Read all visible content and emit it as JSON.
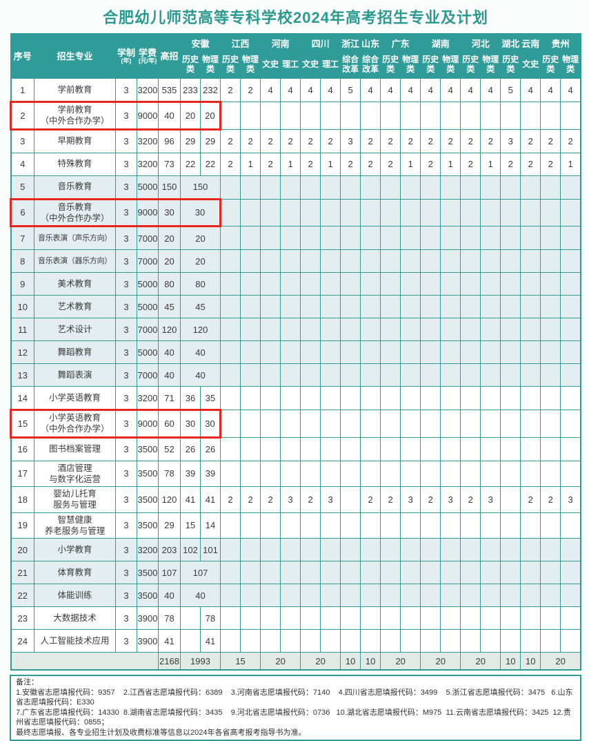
{
  "title": "合肥幼儿师范高等专科学校2024年高考招生专业及计划",
  "colors": {
    "accent_teal": "#2f9c99",
    "grid_teal": "#35a09c",
    "highlight_red": "#e6251c",
    "shaded_row": "#e4edef",
    "totals_row": "#e3e9e5",
    "title_text": "#2a9a90"
  },
  "table": {
    "header": {
      "seq": "序号",
      "major": "招生专业",
      "duration": "学制",
      "duration_unit": "(年)",
      "tuition": "学费",
      "tuition_unit": "(元/年)",
      "total": "高招",
      "provinces": [
        {
          "name": "安徽",
          "cols": [
            "历史类",
            "物理类"
          ]
        },
        {
          "name": "江西",
          "cols": [
            "历史类",
            "物理类"
          ]
        },
        {
          "name": "河南",
          "cols": [
            "文史",
            "理工"
          ]
        },
        {
          "name": "四川",
          "cols": [
            "文史",
            "理工"
          ]
        },
        {
          "name": "浙江",
          "cols": [
            "综合改革"
          ]
        },
        {
          "name": "山东",
          "cols": [
            "综合改革"
          ]
        },
        {
          "name": "广东",
          "cols": [
            "历史类",
            "物理类"
          ]
        },
        {
          "name": "湖南",
          "cols": [
            "历史类",
            "物理类"
          ]
        },
        {
          "name": "河北",
          "cols": [
            "历史类",
            "物理类"
          ]
        },
        {
          "name": "湖北",
          "cols": [
            "历史类"
          ]
        },
        {
          "name": "云南",
          "cols": [
            "文史"
          ]
        },
        {
          "name": "贵州",
          "cols": [
            "历史类",
            "物理类"
          ]
        }
      ]
    },
    "rows": [
      {
        "seq": "1",
        "major": "学前教育",
        "years": "3",
        "tuition": "3200",
        "total": "535",
        "ah": [
          "233",
          "232"
        ],
        "vals": [
          "2",
          "2",
          "4",
          "4",
          "4",
          "4",
          "5",
          "4",
          "4",
          "4",
          "4",
          "4",
          "4",
          "4",
          "5",
          "4",
          "4",
          "4"
        ]
      },
      {
        "seq": "2",
        "major": "学前教育\n（中外合作办学）",
        "years": "3",
        "tuition": "9000",
        "total": "40",
        "ah": [
          "20",
          "20"
        ],
        "red": true
      },
      {
        "seq": "3",
        "major": "早期教育",
        "years": "3",
        "tuition": "3200",
        "total": "96",
        "ah": [
          "29",
          "29"
        ],
        "vals": [
          "2",
          "2",
          "2",
          "2",
          "2",
          "2",
          "3",
          "2",
          "2",
          "2",
          "2",
          "2",
          "2",
          "2",
          "3",
          "2",
          "2",
          "2"
        ]
      },
      {
        "seq": "4",
        "major": "特殊教育",
        "years": "3",
        "tuition": "3200",
        "total": "73",
        "ah": [
          "22",
          "22"
        ],
        "vals": [
          "2",
          "1",
          "2",
          "1",
          "2",
          "1",
          "2",
          "2",
          "2",
          "1",
          "2",
          "1",
          "2",
          "1",
          "2",
          "2",
          "2",
          "1"
        ]
      },
      {
        "seq": "5",
        "major": "音乐教育",
        "years": "3",
        "tuition": "5000",
        "total": "150",
        "ah_merged": "150",
        "shaded": true
      },
      {
        "seq": "6",
        "major": "音乐教育\n（中外合作办学）",
        "years": "3",
        "tuition": "9000",
        "total": "30",
        "ah_merged": "30",
        "shaded": true,
        "red": true
      },
      {
        "seq": "7",
        "major": "音乐表演（声乐方向）",
        "years": "3",
        "tuition": "7000",
        "total": "20",
        "ah_merged": "20",
        "shaded": true
      },
      {
        "seq": "8",
        "major": "音乐表演（器乐方向）",
        "years": "3",
        "tuition": "7000",
        "total": "20",
        "ah_merged": "20",
        "shaded": true
      },
      {
        "seq": "9",
        "major": "美术教育",
        "years": "3",
        "tuition": "5000",
        "total": "80",
        "ah_merged": "80",
        "shaded": true
      },
      {
        "seq": "10",
        "major": "艺术教育",
        "years": "3",
        "tuition": "5000",
        "total": "45",
        "ah_merged": "45",
        "shaded": true
      },
      {
        "seq": "11",
        "major": "艺术设计",
        "years": "3",
        "tuition": "7000",
        "total": "120",
        "ah_merged": "120",
        "shaded": true
      },
      {
        "seq": "12",
        "major": "舞蹈教育",
        "years": "3",
        "tuition": "5000",
        "total": "40",
        "ah_merged": "40",
        "shaded": true
      },
      {
        "seq": "13",
        "major": "舞蹈表演",
        "years": "3",
        "tuition": "7000",
        "total": "40",
        "ah_merged": "40",
        "shaded": true
      },
      {
        "seq": "14",
        "major": "小学英语教育",
        "years": "3",
        "tuition": "3200",
        "total": "71",
        "ah": [
          "36",
          "35"
        ]
      },
      {
        "seq": "15",
        "major": "小学英语教育\n（中外合作办学）",
        "years": "3",
        "tuition": "9000",
        "total": "60",
        "ah": [
          "30",
          "30"
        ],
        "red": true
      },
      {
        "seq": "16",
        "major": "图书档案管理",
        "years": "3",
        "tuition": "3500",
        "total": "52",
        "ah": [
          "26",
          "26"
        ]
      },
      {
        "seq": "17",
        "major": "酒店管理\n与数字化运营",
        "years": "3",
        "tuition": "3500",
        "total": "78",
        "ah": [
          "39",
          "39"
        ]
      },
      {
        "seq": "18",
        "major": "婴幼儿托育\n服务与管理",
        "years": "3",
        "tuition": "3500",
        "total": "120",
        "ah": [
          "41",
          "41"
        ],
        "vals": [
          "2",
          "2",
          "2",
          "3",
          "2",
          "3",
          "",
          "2",
          "2",
          "3",
          "2",
          "3",
          "2",
          "3",
          "",
          "2",
          "2",
          "3"
        ]
      },
      {
        "seq": "19",
        "major": "智慧健康\n养老服务与管理",
        "years": "3",
        "tuition": "3500",
        "total": "29",
        "ah": [
          "15",
          "14"
        ]
      },
      {
        "seq": "20",
        "major": "小学教育",
        "years": "3",
        "tuition": "3200",
        "total": "203",
        "ah": [
          "102",
          "101"
        ],
        "shaded": true
      },
      {
        "seq": "21",
        "major": "体育教育",
        "years": "3",
        "tuition": "3500",
        "total": "107",
        "ah_merged": "107",
        "shaded": true
      },
      {
        "seq": "22",
        "major": "体能训练",
        "years": "3",
        "tuition": "3500",
        "total": "40",
        "ah_merged": "40",
        "shaded": true
      },
      {
        "seq": "23",
        "major": "大数据技术",
        "years": "3",
        "tuition": "3900",
        "total": "78",
        "ah": [
          "",
          "78"
        ]
      },
      {
        "seq": "24",
        "major": "人工智能技术应用",
        "years": "3",
        "tuition": "3900",
        "total": "41",
        "ah": [
          "",
          "41"
        ]
      }
    ],
    "totals": {
      "grand": "2168",
      "anhui": "1993",
      "provinces": [
        "15",
        "20",
        "20",
        "10",
        "10",
        "20",
        "20",
        "20",
        "10",
        "10",
        "20"
      ]
    }
  },
  "notes": {
    "label": "备注：",
    "lines": [
      "1.安徽省志愿填报代码：9357    2.江西省志愿填报代码：6389    3.河南省志愿填报代码：7140    4.四川省志愿填报代码：3499    5.浙江省志愿填报代码：3475   6.山东省志愿填报代码：E330",
      "7.广东省志愿填报代码：14330  8.湖南省志愿填报代码：3435    9.河北省志愿填报代码：0736   10.湖北省志愿填报代码：M975  11.云南省志愿填报代码：3425  12.贵州省志愿填报代码：0855；",
      "最终志愿填报、各专业招生计划及收费标准等信息以2024年各省高考报考指导书为准。"
    ]
  }
}
